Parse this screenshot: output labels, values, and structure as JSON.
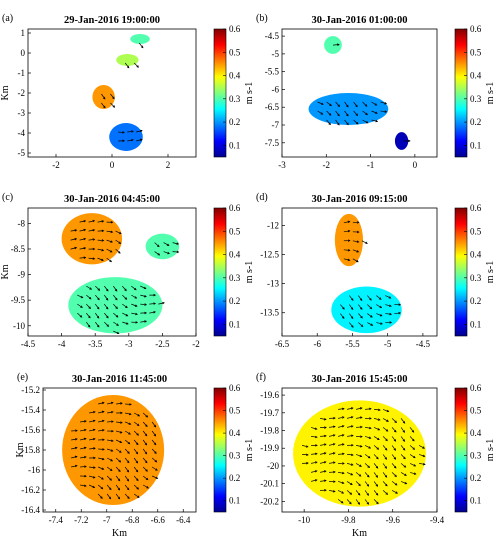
{
  "chart_data": [
    {
      "type": "vector-field",
      "panel_label": "(a)",
      "title": "29-Jan-2016 19:00:00",
      "xlabel": "",
      "ylabel": "Km",
      "xlim": [
        -3,
        3
      ],
      "ylim": [
        -5.2,
        1.2
      ],
      "xticks": [
        -2,
        0,
        2
      ],
      "yticks": [
        1,
        0,
        -1,
        -2,
        -3,
        -4,
        -5
      ],
      "colorbar": {
        "label": "m s-1",
        "range": [
          0.05,
          0.6
        ],
        "ticks": [
          0.6,
          0.5,
          0.4,
          0.3,
          0.2,
          0.1
        ]
      },
      "regions": [
        {
          "x": 1.0,
          "y": 0.7,
          "rx": 0.35,
          "ry": 0.25,
          "speed": 0.3
        },
        {
          "x": 0.55,
          "y": -0.35,
          "rx": 0.4,
          "ry": 0.3,
          "speed": 0.35
        },
        {
          "x": -0.3,
          "y": -2.2,
          "rx": 0.4,
          "ry": 0.6,
          "speed": 0.45
        },
        {
          "x": 0.5,
          "y": -4.2,
          "rx": 0.6,
          "ry": 0.7,
          "speed": 0.18
        }
      ]
    },
    {
      "type": "vector-field",
      "panel_label": "(b)",
      "title": "30-Jan-2016 01:00:00",
      "xlabel": "",
      "ylabel": "",
      "xlim": [
        -3,
        0.5
      ],
      "ylim": [
        -7.9,
        -4.3
      ],
      "xticks": [
        -3,
        -2,
        -1,
        0
      ],
      "yticks": [
        -4.5,
        -5,
        -5.5,
        -6,
        -6.5,
        -7,
        -7.5
      ],
      "colorbar": {
        "label": "m s-1",
        "range": [
          0.05,
          0.6
        ],
        "ticks": [
          0.6,
          0.5,
          0.4,
          0.3,
          0.2,
          0.1
        ]
      },
      "regions": [
        {
          "x": -1.85,
          "y": -4.75,
          "rx": 0.2,
          "ry": 0.25,
          "speed": 0.3
        },
        {
          "x": -1.5,
          "y": -6.55,
          "rx": 0.9,
          "ry": 0.45,
          "speed": 0.2
        },
        {
          "x": -0.3,
          "y": -7.45,
          "rx": 0.15,
          "ry": 0.25,
          "speed": 0.08
        }
      ]
    },
    {
      "type": "vector-field",
      "panel_label": "(c)",
      "title": "30-Jan-2016 04:45:00",
      "xlabel": "",
      "ylabel": "Km",
      "xlim": [
        -4.5,
        -2
      ],
      "ylim": [
        -10.2,
        -7.7
      ],
      "xticks": [
        -4.5,
        -4,
        -3.5,
        -3,
        -2.5,
        -2
      ],
      "yticks": [
        -8,
        -8.5,
        -9,
        -9.5,
        -10
      ],
      "colorbar": {
        "label": "m s-1",
        "range": [
          0.05,
          0.6
        ],
        "ticks": [
          0.6,
          0.5,
          0.4,
          0.3,
          0.2,
          0.1
        ]
      },
      "regions": [
        {
          "x": -3.55,
          "y": -8.3,
          "rx": 0.45,
          "ry": 0.5,
          "speed": 0.45
        },
        {
          "x": -3.2,
          "y": -9.6,
          "rx": 0.7,
          "ry": 0.55,
          "speed": 0.3
        },
        {
          "x": -2.5,
          "y": -8.45,
          "rx": 0.25,
          "ry": 0.25,
          "speed": 0.3
        }
      ]
    },
    {
      "type": "vector-field",
      "panel_label": "(d)",
      "title": "30-Jan-2016 09:15:00",
      "xlabel": "",
      "ylabel": "",
      "xlim": [
        -6.5,
        -4.3
      ],
      "ylim": [
        -13.9,
        -11.7
      ],
      "xticks": [
        -6.5,
        -6,
        -5.5,
        -5,
        -4.5
      ],
      "yticks": [
        -12,
        -12.5,
        -13,
        -13.5
      ],
      "colorbar": {
        "label": "m s-1",
        "range": [
          0.05,
          0.6
        ],
        "ticks": [
          0.6,
          0.5,
          0.4,
          0.3,
          0.2,
          0.1
        ]
      },
      "regions": [
        {
          "x": -5.55,
          "y": -12.25,
          "rx": 0.2,
          "ry": 0.45,
          "speed": 0.45
        },
        {
          "x": -5.3,
          "y": -13.45,
          "rx": 0.5,
          "ry": 0.4,
          "speed": 0.25
        }
      ]
    },
    {
      "type": "vector-field",
      "panel_label": "(e)",
      "title": "30-Jan-2016 11:45:00",
      "xlabel": "Km",
      "ylabel": "Km",
      "xlim": [
        -7.5,
        -6.3
      ],
      "ylim": [
        -16.42,
        -15.18
      ],
      "xticks": [
        -7.4,
        -7.2,
        -7,
        -6.8,
        -6.6,
        -6.4
      ],
      "yticks": [
        -15.2,
        -15.4,
        -15.6,
        -15.8,
        -16,
        -16.2,
        -16.4
      ],
      "colorbar": {
        "label": "m s-1",
        "range": [
          0.05,
          0.6
        ],
        "ticks": [
          0.6,
          0.5,
          0.4,
          0.3,
          0.2,
          0.1
        ]
      },
      "regions": [
        {
          "x": -6.95,
          "y": -15.8,
          "rx": 0.4,
          "ry": 0.55,
          "speed": 0.45
        }
      ]
    },
    {
      "type": "vector-field",
      "panel_label": "(f)",
      "title": "30-Jan-2016 15:45:00",
      "xlabel": "Km",
      "ylabel": "",
      "xlim": [
        -10.1,
        -9.4
      ],
      "ylim": [
        -20.26,
        -19.56
      ],
      "xticks": [
        -10,
        -9.8,
        -9.6,
        -9.4
      ],
      "yticks": [
        -19.6,
        -19.7,
        -19.8,
        -19.9,
        -20,
        -20.1,
        -20.2
      ],
      "colorbar": {
        "label": "m s-1",
        "range": [
          0.05,
          0.6
        ],
        "ticks": [
          0.6,
          0.5,
          0.4,
          0.3,
          0.2,
          0.1
        ]
      },
      "regions": [
        {
          "x": -9.75,
          "y": -19.93,
          "rx": 0.3,
          "ry": 0.3,
          "speed": 0.4
        }
      ]
    }
  ]
}
